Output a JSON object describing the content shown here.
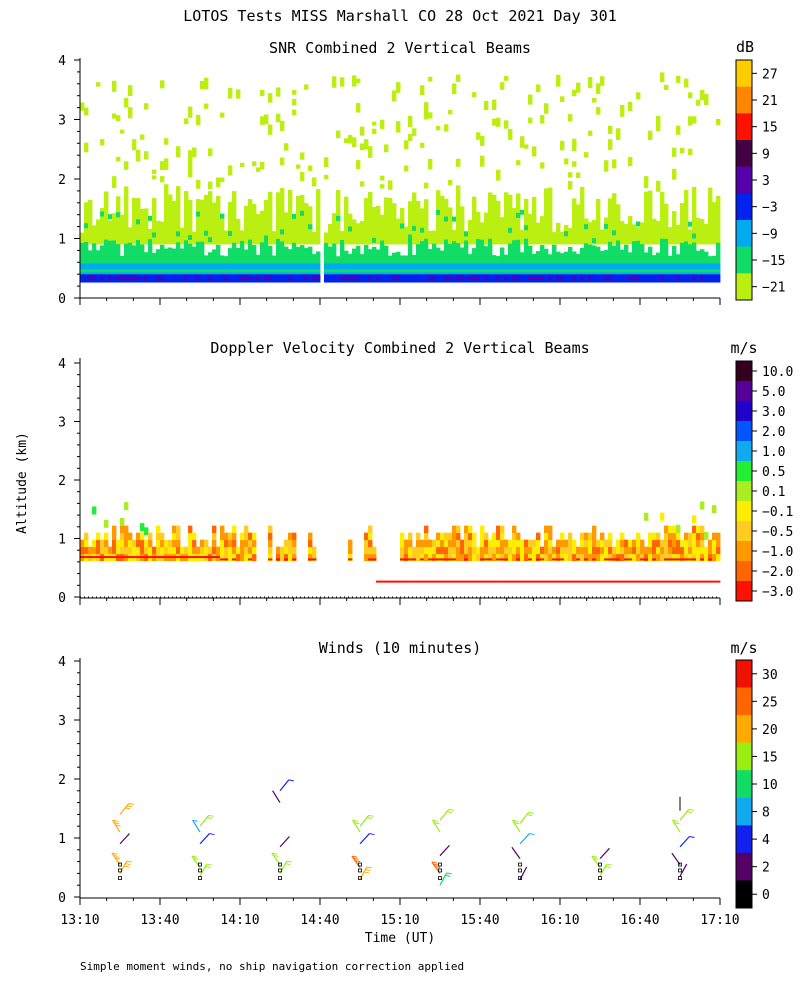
{
  "figure": {
    "title": "LOTOS Tests MISS Marshall CO  28 Oct 2021 Day 301",
    "ylabel": "Altitude (km)",
    "xlabel": "Time (UT)",
    "footnote": "Simple moment winds, no ship navigation correction applied"
  },
  "chart_data": [
    {
      "type": "heatmap",
      "title": "SNR Combined 2 Vertical Beams",
      "xlim": [
        "13:10",
        "17:10"
      ],
      "ylim": [
        0,
        4
      ],
      "y_ticks": [
        0,
        1,
        2,
        3,
        4
      ],
      "x_ticks": [
        "13:10",
        "13:40",
        "14:10",
        "14:40",
        "15:10",
        "15:40",
        "16:10",
        "16:40",
        "17:10"
      ],
      "colorbar": {
        "unit": "dB",
        "labels": [
          "27",
          "21",
          "15",
          "9",
          "3",
          "−3",
          "−9",
          "−15",
          "−21"
        ],
        "colors": [
          "#ffcc00",
          "#ff8800",
          "#ff1100",
          "#440044",
          "#5500aa",
          "#0022ee",
          "#00aaee",
          "#11dd66",
          "#bbee11"
        ]
      },
      "layers": [
        {
          "range_km": [
            0.25,
            0.4
          ],
          "level": "−3"
        },
        {
          "range_km": [
            0.4,
            0.55
          ],
          "level": "−9"
        },
        {
          "range_km": [
            0.5,
            0.9
          ],
          "level": "−15"
        },
        {
          "range_km": [
            0.9,
            1.8
          ],
          "level": "−21"
        }
      ]
    },
    {
      "type": "heatmap",
      "title": "Doppler Velocity Combined 2 Vertical Beams",
      "xlim": [
        "13:10",
        "17:10"
      ],
      "ylim": [
        0,
        4
      ],
      "y_ticks": [
        0,
        1,
        2,
        3,
        4
      ],
      "colorbar": {
        "unit": "m/s",
        "labels": [
          "10.0",
          "5.0",
          "3.0",
          "2.0",
          "1.0",
          "0.5",
          "0.1",
          "−0.1",
          "−0.5",
          "−1.0",
          "−2.0",
          "−3.0"
        ],
        "colors": [
          "#330022",
          "#550099",
          "#2200cc",
          "#0055ff",
          "#11aaee",
          "#22ee33",
          "#aaee22",
          "#ffee00",
          "#ffcc22",
          "#ff9900",
          "#ff6600",
          "#ff1100"
        ]
      },
      "layers": [
        {
          "range_km": [
            0.25,
            0.3
          ],
          "level": "−3.0"
        },
        {
          "range_km": [
            0.6,
            1.1
          ],
          "level": "−0.5"
        },
        {
          "range_km": [
            1.1,
            1.7
          ],
          "level": "0.5"
        }
      ]
    },
    {
      "type": "scatter",
      "title": "Winds (10 minutes)",
      "xlim": [
        "13:10",
        "17:10"
      ],
      "ylim": [
        0,
        4
      ],
      "y_ticks": [
        0,
        1,
        2,
        3,
        4
      ],
      "colorbar": {
        "unit": "m/s",
        "labels": [
          "30",
          "25",
          "20",
          "15",
          "10",
          "8",
          "4",
          "2",
          "0"
        ],
        "colors": [
          "#ee1100",
          "#ff6600",
          "#ffaa00",
          "#99ee11",
          "#11dd66",
          "#11aaee",
          "#1122ee",
          "#550066",
          "#000000"
        ]
      },
      "profiles": [
        {
          "time": "13:25",
          "speed_ms_by_height": [
            [
              0.4,
              22
            ],
            [
              0.55,
              20
            ],
            [
              0.9,
              3
            ],
            [
              1.1,
              20
            ],
            [
              1.4,
              23
            ]
          ]
        },
        {
          "time": "13:55",
          "speed_ms_by_height": [
            [
              0.35,
              15
            ],
            [
              0.5,
              15
            ],
            [
              0.9,
              4
            ],
            [
              1.1,
              8
            ],
            [
              1.2,
              15
            ]
          ]
        },
        {
          "time": "14:25",
          "speed_ms_by_height": [
            [
              0.4,
              15
            ],
            [
              0.55,
              15
            ],
            [
              0.85,
              3
            ],
            [
              1.6,
              3
            ],
            [
              1.8,
              4
            ]
          ]
        },
        {
          "time": "14:55",
          "speed_ms_by_height": [
            [
              0.3,
              22
            ],
            [
              0.5,
              25
            ],
            [
              0.9,
              4
            ],
            [
              1.1,
              15
            ],
            [
              1.2,
              17
            ]
          ]
        },
        {
          "time": "15:25",
          "speed_ms_by_height": [
            [
              0.2,
              12
            ],
            [
              0.4,
              25
            ],
            [
              0.7,
              2
            ],
            [
              1.1,
              15
            ],
            [
              1.3,
              15
            ]
          ]
        },
        {
          "time": "15:55",
          "speed_ms_by_height": [
            [
              0.3,
              3
            ],
            [
              0.65,
              3
            ],
            [
              0.9,
              8
            ],
            [
              1.1,
              15
            ],
            [
              1.25,
              15
            ]
          ]
        },
        {
          "time": "16:25",
          "speed_ms_by_height": [
            [
              0.35,
              18
            ],
            [
              0.5,
              18
            ],
            [
              0.65,
              3
            ]
          ]
        },
        {
          "time": "16:55",
          "speed_ms_by_height": [
            [
              0.35,
              3
            ],
            [
              0.55,
              3
            ],
            [
              0.85,
              5
            ],
            [
              1.1,
              15
            ],
            [
              1.3,
              15
            ],
            [
              1.7,
              0
            ]
          ]
        }
      ]
    }
  ]
}
